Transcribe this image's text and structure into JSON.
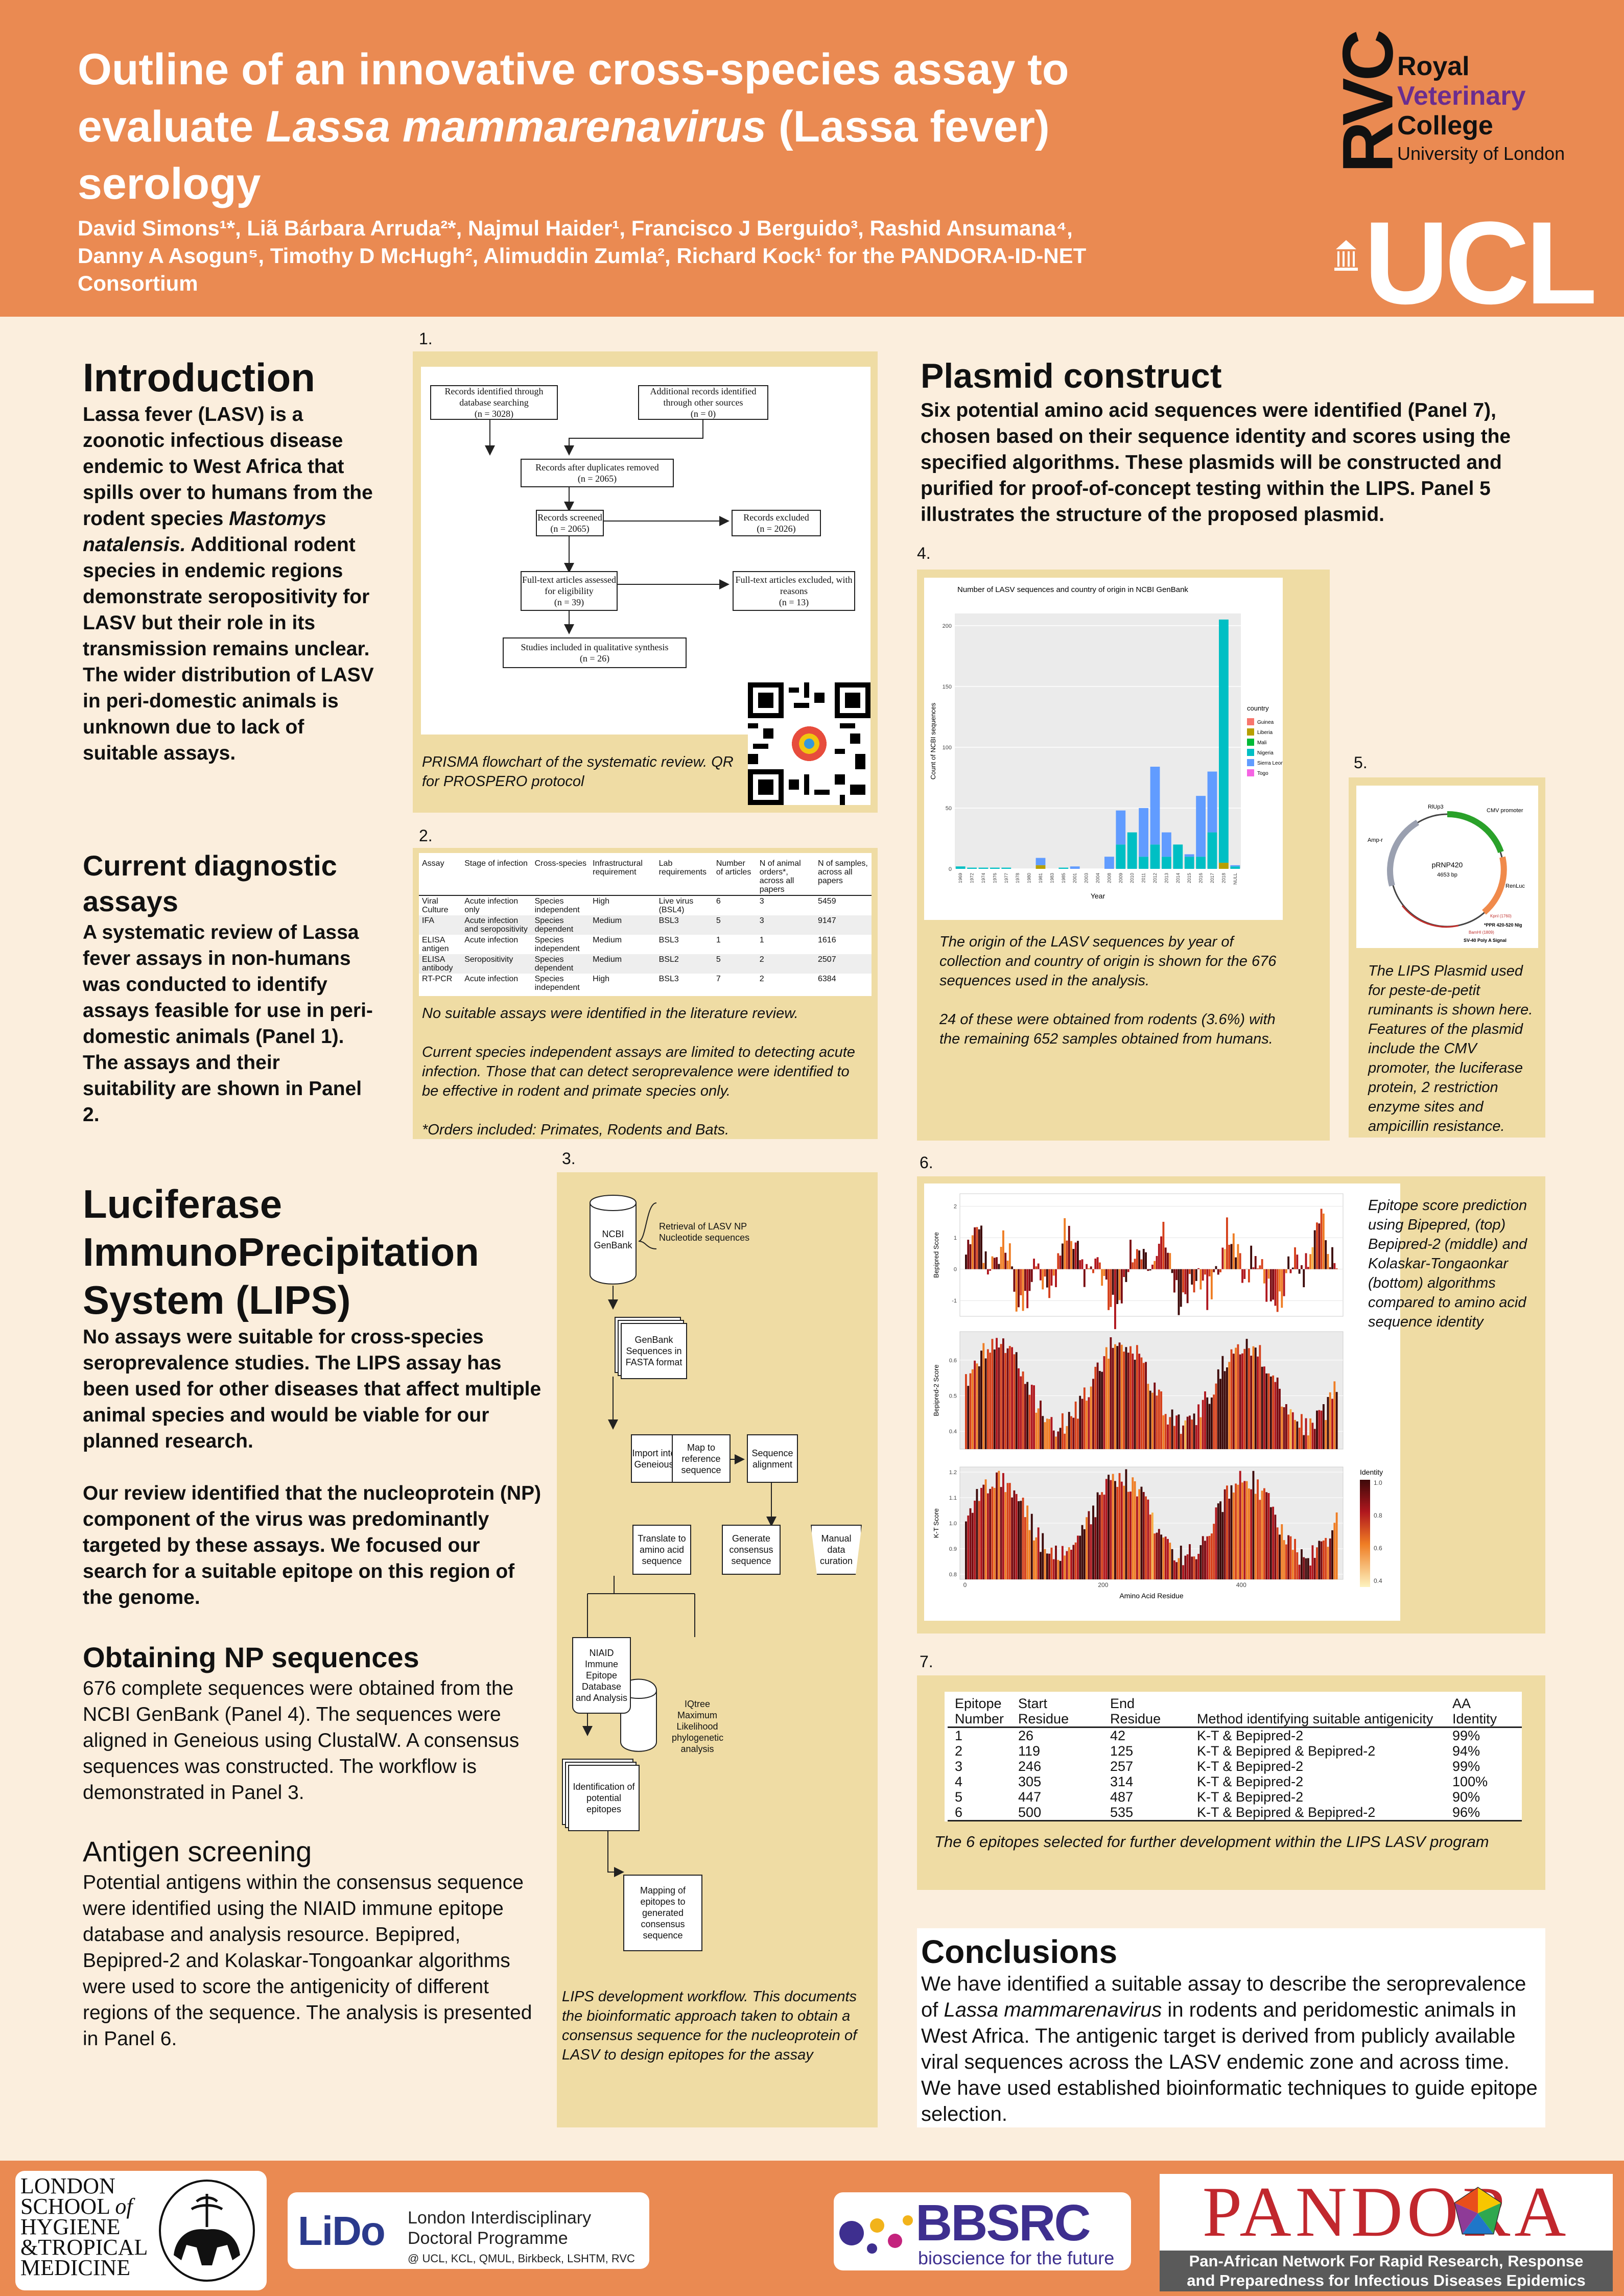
{
  "header": {
    "title_line1": "Outline of an innovative cross-species assay to",
    "title_line2a": "evaluate ",
    "title_line2b": "Lassa mammarenavirus",
    "title_line2c": " (Lassa fever)",
    "title_line3": "serology",
    "authors_line1": "David Simons¹*, Liã Bárbara Arruda²*, Najmul Haider¹, Francisco J Berguido³, Rashid Ansumana⁴,",
    "authors_line2": "Danny A Asogun⁵, Timothy D McHugh², Alimuddin Zumla², Richard Kock¹ for the PANDORA-ID-NET",
    "authors_line3": "Consortium",
    "rvc_letters": "RVC",
    "rvc_line1": "Royal",
    "rvc_line2": "Veterinary",
    "rvc_line3": "College",
    "rvc_line4": "University of London",
    "ucl": "UCL"
  },
  "intro": {
    "heading": "Introduction",
    "text_a": "Lassa fever (LASV) is a zoonotic infectious disease endemic to West Africa that spills over to humans from the rodent species ",
    "text_b": "Mastomys natalensis.",
    "text_c": " Additional rodent species in endemic regions demonstrate seropositivity for LASV but their role in its transmission remains unclear. The wider distribution of LASV in peri-domestic animals is unknown due to lack of suitable assays."
  },
  "diag": {
    "heading": "Current diagnostic assays",
    "text": "A systematic review of Lassa fever assays in non-humans was conducted to identify assays feasible for use in peri-domestic animals (Panel 1). The assays and their suitability are shown in Panel 2."
  },
  "lips": {
    "heading_l1": "Luciferase",
    "heading_l2": "ImmunoPrecipitation",
    "heading_l3": "System  (LIPS)",
    "text1": "No assays were suitable for cross-species seroprevalence studies. The LIPS assay has been used for other diseases that affect multiple animal species and would be viable for our planned research.",
    "text2": "Our review identified that the nucleoprotein (NP) component of the virus was predominantly targeted by these assays. We focused our search for a suitable epitope on this region of the genome."
  },
  "np": {
    "heading": "Obtaining NP sequences",
    "text": "676 complete sequences were obtained from the NCBI GenBank (Panel 4). The sequences were aligned in Geneious using ClustalW. A consensus sequences was constructed. The workflow is demonstrated in Panel 3."
  },
  "antigen": {
    "heading": "Antigen screening",
    "text": "Potential antigens within the consensus sequence were identified using the NIAID immune epitope database and analysis resource. Bepipred, Bepipred-2 and Kolaskar-Tongoankar algorithms were used to score the antigenicity of different regions of the sequence. The analysis is presented in Panel 6."
  },
  "panel1": {
    "num": "1.",
    "box_id1": "Records identified through database searching",
    "box_id1n": "(n = 3028)",
    "box_id2": "Additional records identified through other sources",
    "box_id2n": "(n = 0)",
    "box_dup": "Records after duplicates removed",
    "box_dupn": "(n = 2065)",
    "box_scr": "Records screened",
    "box_scrn": "(n = 2065)",
    "box_exc": "Records excluded",
    "box_excn": "(n = 2026)",
    "box_full": "Full-text articles assessed for eligibility",
    "box_fulln": "(n = 39)",
    "box_fexc": "Full-text articles excluded, with reasons",
    "box_fexcn": "(n = 13)",
    "box_inc": "Studies included in qualitative synthesis",
    "box_incn": "(n = 26)",
    "caption": "PRISMA flowchart of the systematic review. QR for PROSPERO protocol"
  },
  "panel2": {
    "num": "2.",
    "headers": [
      "Assay",
      "Stage of infection",
      "Cross-species",
      "Infrastructural requirement",
      "Lab requirements",
      "Number of articles",
      "N of animal orders*, across all papers",
      "N of samples, across all papers"
    ],
    "rows": [
      [
        "Viral Culture",
        "Acute infection only",
        "Species independent",
        "High",
        "Live virus (BSL4)",
        "6",
        "3",
        "5459"
      ],
      [
        "IFA",
        "Acute infection and seropositivity",
        "Species dependent",
        "Medium",
        "BSL3",
        "5",
        "3",
        "9147"
      ],
      [
        "ELISA antigen",
        "Acute infection",
        "Species independent",
        "Medium",
        "BSL3",
        "1",
        "1",
        "1616"
      ],
      [
        "ELISA antibody",
        "Seropositivity",
        "Species dependent",
        "Medium",
        "BSL2",
        "5",
        "2",
        "2507"
      ],
      [
        "RT-PCR",
        "Acute infection",
        "Species independent",
        "High",
        "BSL3",
        "7",
        "2",
        "6384"
      ]
    ],
    "cap1": "No suitable assays were identified in the literature review.",
    "cap2": "Current species independent assays are limited to detecting acute infection. Those that can detect seroprevalence were identified to be effective in rodent and primate species only.",
    "cap3": "*Orders included: Primates, Rodents and Bats."
  },
  "panel3": {
    "num": "3.",
    "ncbi": "NCBI GenBank",
    "retrieval": "Retrieval of LASV NP Nucleotide sequences",
    "genbank": "GenBank Sequences in FASTA format",
    "import": "Import into Geneious",
    "map": "Map to reference sequence",
    "align": "Sequence alignment",
    "translate": "Translate to amino acid sequence",
    "consensus": "Generate consensus sequence",
    "manual": "Manual data curation",
    "niaid": "NIAID Immune Epitope Database and Analysis",
    "iqtree": "IQtree Maximum Likelihood phylogenetic analysis",
    "ident": "Identification of potential epitopes",
    "mapping": "Mapping of epitopes to generated consensus sequence",
    "caption": "LIPS development workflow. This documents the bioinformatic approach taken to obtain a consensus sequence for the nucleoprotein of LASV to design epitopes for the assay"
  },
  "plasmid": {
    "heading": "Plasmid construct",
    "text": "Six potential amino acid sequences were identified (Panel 7), chosen based on their sequence identity and scores using the specified algorithms. These plasmids will be constructed and purified for proof-of-concept testing within the LIPS. Panel 5 illustrates the structure of the proposed plasmid."
  },
  "panel4": {
    "num": "4.",
    "cap1": "The origin of the LASV sequences by year of collection and country of origin is shown for the 676 sequences used in the analysis.",
    "cap2": "24 of these were obtained from rodents (3.6%) with the remaining 652 samples obtained from humans."
  },
  "chart_data": {
    "type": "bar",
    "title": "Number of LASV sequences and country of origin in NCBI GenBank",
    "xlabel": "Year",
    "ylabel": "Count of NCBI sequences",
    "ylim": [
      0,
      210
    ],
    "yticks": [
      0,
      50,
      100,
      150,
      200
    ],
    "categories": [
      "1969",
      "1972",
      "1974",
      "1976",
      "1977",
      "1978",
      "1980",
      "1981",
      "1983",
      "1985",
      "2001",
      "2003",
      "2004",
      "2008",
      "2009",
      "2010",
      "2011",
      "2012",
      "2013",
      "2014",
      "2015",
      "2016",
      "2017",
      "2018",
      "NULL"
    ],
    "legend_title": "country",
    "legend_position": "right",
    "colors": {
      "Guinea": "#f8766d",
      "Liberia": "#b79f00",
      "Mali": "#00ba38",
      "Nigeria": "#00bfc4",
      "Sierra Leone": "#619cff",
      "Togo": "#f564e3"
    },
    "series": [
      {
        "name": "Guinea",
        "values": [
          0,
          0,
          0,
          0,
          0,
          0,
          0,
          0,
          0,
          0,
          0,
          0,
          0,
          0,
          0,
          0,
          0,
          0,
          0,
          0,
          0,
          0,
          0,
          0,
          0
        ]
      },
      {
        "name": "Liberia",
        "values": [
          0,
          0,
          0,
          0,
          0,
          0,
          0,
          3,
          0,
          0,
          0,
          0,
          0,
          0,
          0,
          0,
          0,
          0,
          0,
          0,
          0,
          0,
          0,
          5,
          0
        ]
      },
      {
        "name": "Mali",
        "values": [
          0,
          0,
          0,
          0,
          0,
          0,
          0,
          0,
          0,
          0,
          0,
          0,
          0,
          0,
          0,
          0,
          0,
          0,
          0,
          0,
          0,
          0,
          0,
          0,
          0
        ]
      },
      {
        "name": "Nigeria",
        "values": [
          2,
          1,
          1,
          1,
          1,
          0,
          0,
          0,
          0,
          1,
          0,
          0,
          0,
          0,
          20,
          30,
          10,
          20,
          10,
          20,
          10,
          10,
          30,
          200,
          2
        ]
      },
      {
        "name": "Sierra Leone",
        "values": [
          0,
          0,
          0,
          0,
          0,
          0,
          0,
          6,
          0,
          0,
          2,
          0,
          0,
          10,
          28,
          0,
          40,
          64,
          20,
          0,
          2,
          50,
          50,
          0,
          1
        ]
      },
      {
        "name": "Togo",
        "values": [
          0,
          0,
          0,
          0,
          0,
          0,
          0,
          0,
          0,
          0,
          0,
          0,
          0,
          0,
          0,
          0,
          0,
          0,
          0,
          0,
          0,
          0,
          0,
          0,
          0
        ]
      }
    ]
  },
  "panel5": {
    "num": "5.",
    "lbl_rlu": "RlUp3",
    "lbl_cmv": "CMV promoter",
    "lbl_amp": "Amp-r",
    "lbl_name": "pRNP420",
    "lbl_sub": "4653 bp",
    "lbl_renluc": "RenLuc",
    "lbl_kpn": "KpnI (1760)",
    "lbl_ppr": "*PPR 420-520 Nlg",
    "lbl_bam": "BamHI (1809)",
    "lbl_sv40": "SV-40 Poly A Signal",
    "caption": "The LIPS Plasmid used for peste-de-petit ruminants is shown here. Features of the plasmid include the CMV promoter, the luciferase protein, 2 restriction enzyme sites and ampicillin resistance."
  },
  "panel6": {
    "num": "6.",
    "ylab1": "Bepipred Score",
    "ylab2": "Bepipred-2 Score",
    "ylab3": "K-T Score",
    "xlab": "Amino Acid Residue",
    "legend": "Identity",
    "legend_ticks": [
      "1.0",
      "0.8",
      "0.6",
      "0.4"
    ],
    "y1_ticks": [
      "2",
      "1",
      "0",
      "-1"
    ],
    "y2_ticks": [
      "0.6",
      "0.5",
      "0.4"
    ],
    "y3_ticks": [
      "1.2",
      "1.1",
      "1.0",
      "0.9",
      "0.8"
    ],
    "x_ticks": [
      "0",
      "200",
      "400"
    ],
    "caption": "Epitope score prediction using Bipepred, (top) Bepipred-2 (middle) and Kolaskar-Tongaonkar (bottom) algorithms compared to amino acid sequence identity"
  },
  "panel7": {
    "num": "7.",
    "headers": [
      "Epitope Number",
      "Start Residue",
      "End Residue",
      "Method identifying suitable antigenicity",
      "AA Identity"
    ],
    "rows": [
      [
        "1",
        "26",
        "42",
        "K-T & Bepipred-2",
        "99%"
      ],
      [
        "2",
        "119",
        "125",
        "K-T & Bepipred & Bepipred-2",
        "94%"
      ],
      [
        "3",
        "246",
        "257",
        "K-T & Bepipred-2",
        "99%"
      ],
      [
        "4",
        "305",
        "314",
        "K-T & Bepipred-2",
        "100%"
      ],
      [
        "5",
        "447",
        "487",
        "K-T & Bepipred-2",
        "90%"
      ],
      [
        "6",
        "500",
        "535",
        "K-T & Bepipred & Bepipred-2",
        "96%"
      ]
    ],
    "caption": "The 6 epitopes selected for further development within the LIPS LASV program"
  },
  "conclusions": {
    "heading": "Conclusions",
    "text_a": "We have identified a suitable assay to describe the seroprevalence of ",
    "text_b": "Lassa mammarenavirus",
    "text_c": " in rodents and peridomestic animals in West Africa. The antigenic target is derived from publicly available viral sequences across the LASV endemic zone and across time. We have used established bioinformatic techniques to guide epitope selection."
  },
  "footer": {
    "lshtm1": "LONDON",
    "lshtm2a": "SCHOOL",
    "lshtm2b": "of",
    "lshtm3": "HYGIENE",
    "lshtm4": "&TROPICAL",
    "lshtm5": "MEDICINE",
    "lido_mark": "LiDo",
    "lido1": "London Interdisciplinary",
    "lido2": "Doctoral Programme",
    "lido3": "@ UCL, KCL, QMUL, Birkbeck, LSHTM, RVC",
    "bbsrc": "BBSRC",
    "bbsrc_tag": "bioscience for the future",
    "pandora": "PANDORA",
    "pandora1": "Pan-African Network For Rapid Research, Response",
    "pandora2": "and Preparedness for Infectious Diseases Epidemics"
  }
}
